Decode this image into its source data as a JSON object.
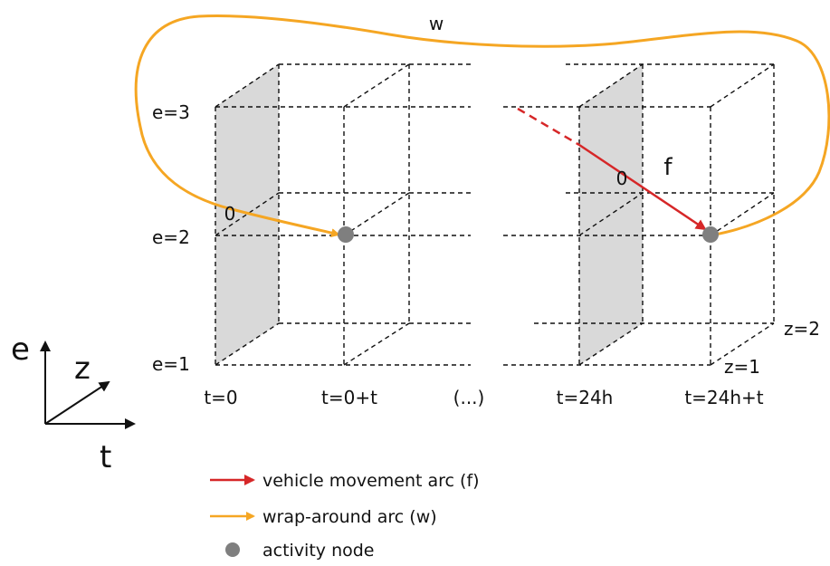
{
  "labels": {
    "e3": "e=3",
    "e2": "e=2",
    "e1": "e=1",
    "t0": "t=0",
    "t0_plus": "t=0+t",
    "ellipsis": "(...)",
    "t24": "t=24h",
    "t24_plus": "t=24h+t",
    "z2": "z=2",
    "z1": "z=1",
    "w": "w",
    "f": "f",
    "node_symbol_left": "0",
    "node_symbol_right": "0"
  },
  "axes": {
    "e": "e",
    "z": "z",
    "t": "t"
  },
  "legend": [
    {
      "name": "vehicle-arc",
      "label": "vehicle movement arc (f)",
      "color": "#d62728",
      "kind": "arrow"
    },
    {
      "name": "wrap-arc",
      "label": "wrap-around arc (w)",
      "color": "#f5a623",
      "kind": "arrow"
    },
    {
      "name": "activity-node",
      "label": "activity node",
      "color": "#7f7f7f",
      "kind": "dot"
    }
  ],
  "colors": {
    "vehicle_arc": "#d62728",
    "wrap_arc": "#f5a623",
    "node": "#7f7f7f",
    "shaded_face": "#d9d9d9"
  }
}
